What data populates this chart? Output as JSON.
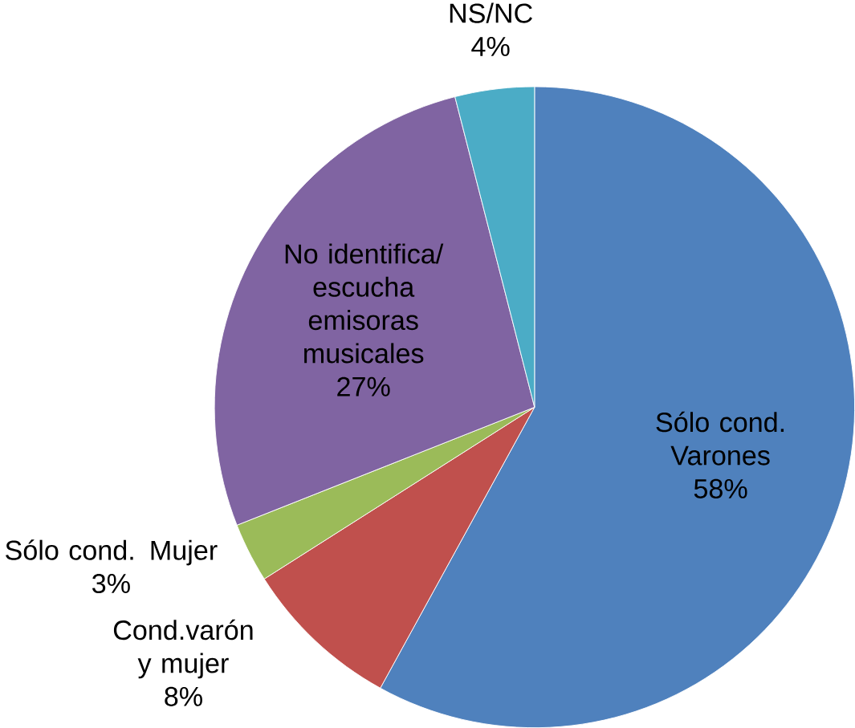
{
  "chart_data": {
    "type": "pie",
    "categories": [
      "Sólo cond. Varones",
      "Cond.varón y mujer",
      "Sólo cond. Mujer",
      "No identifica/ escucha emisoras musicales",
      "NS/NC"
    ],
    "values": [
      58,
      8,
      3,
      27,
      4
    ],
    "value_labels": [
      "58%",
      "8%",
      "3%",
      "27%",
      "4%"
    ],
    "colors": [
      "#4f81bd",
      "#c0504d",
      "#9bbb59",
      "#8064a2",
      "#4bacc6"
    ]
  }
}
